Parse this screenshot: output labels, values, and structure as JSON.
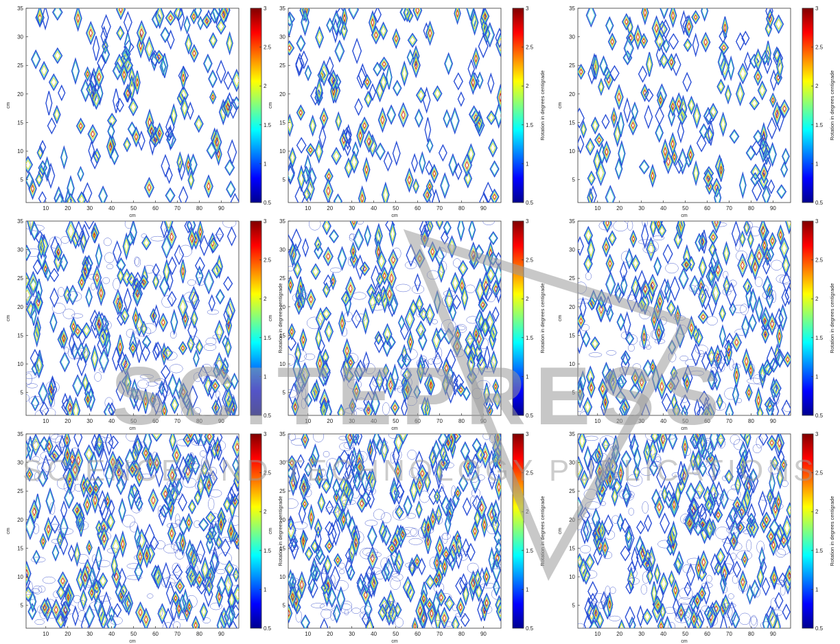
{
  "figure": {
    "colormap": [
      "#00008f",
      "#0000ff",
      "#0080ff",
      "#00ffff",
      "#80ff80",
      "#ffff00",
      "#ff8000",
      "#ff0000",
      "#800000"
    ],
    "contour_colors": [
      "#2a4fd6",
      "#3fa3e8",
      "#4fd2c8",
      "#8fdc76",
      "#e0dc3a",
      "#f39a2a",
      "#c92a1a"
    ]
  },
  "watermark": {
    "brand": "SCITEPRESS",
    "tagline": "SCIENCE AND TECHNOLOGY PUBLICATIONS",
    "color": "#9a9a9a"
  },
  "chart_data": [
    {
      "type": "heatmap",
      "xlabel": "cm",
      "ylabel": "cm",
      "xticks": [
        "10",
        "20",
        "30",
        "40",
        "50",
        "60",
        "70",
        "80",
        "90"
      ],
      "yticks": [
        "5",
        "10",
        "15",
        "20",
        "25",
        "30",
        "35"
      ],
      "xlim": [
        1,
        98
      ],
      "ylim": [
        1,
        35
      ],
      "colorbar": {
        "label": "",
        "ticks": [
          "0.5",
          "1",
          "1.5",
          "2",
          "2.5",
          "3"
        ],
        "range": [
          0.5,
          3
        ]
      },
      "density": 1
    },
    {
      "type": "heatmap",
      "xlabel": "cm",
      "ylabel": "cm",
      "xticks": [
        "10",
        "20",
        "30",
        "40",
        "50",
        "60",
        "70",
        "80",
        "90"
      ],
      "yticks": [
        "5",
        "10",
        "15",
        "20",
        "25",
        "30",
        "35"
      ],
      "xlim": [
        1,
        98
      ],
      "ylim": [
        1,
        35
      ],
      "colorbar": {
        "label": "Rotation in degrees centigrade",
        "ticks": [
          "0.5",
          "1",
          "1.5",
          "2",
          "2.5",
          "3"
        ],
        "range": [
          0.5,
          3
        ]
      },
      "density": 1
    },
    {
      "type": "heatmap",
      "xlabel": "cm",
      "ylabel": "cm",
      "xticks": [
        "10",
        "20",
        "30",
        "40",
        "50",
        "60",
        "70",
        "80",
        "90"
      ],
      "yticks": [
        "5",
        "10",
        "15",
        "20",
        "25",
        "30",
        "35"
      ],
      "xlim": [
        1,
        98
      ],
      "ylim": [
        1,
        35
      ],
      "colorbar": {
        "label": "Rotation in degrees centigrade",
        "ticks": [
          "0.5",
          "1",
          "1.5",
          "2",
          "2.5",
          "3"
        ],
        "range": [
          0.5,
          3
        ]
      },
      "density": 1
    },
    {
      "type": "heatmap",
      "xlabel": "cm",
      "ylabel": "cm",
      "xticks": [
        "10",
        "20",
        "30",
        "40",
        "50",
        "60",
        "70",
        "80",
        "90"
      ],
      "yticks": [
        "5",
        "10",
        "15",
        "20",
        "25",
        "30",
        "35"
      ],
      "xlim": [
        1,
        98
      ],
      "ylim": [
        1,
        35
      ],
      "colorbar": {
        "label": "Rotation in degrees centigrade",
        "ticks": [
          "0.5",
          "1",
          "1.5",
          "2",
          "2.5",
          "3"
        ],
        "range": [
          0.5,
          3
        ]
      },
      "density": 2
    },
    {
      "type": "heatmap",
      "xlabel": "cm",
      "ylabel": "cm",
      "xticks": [
        "10",
        "20",
        "30",
        "40",
        "50",
        "60",
        "70",
        "80",
        "90"
      ],
      "yticks": [
        "5",
        "10",
        "15",
        "20",
        "25",
        "30",
        "35"
      ],
      "xlim": [
        1,
        98
      ],
      "ylim": [
        1,
        35
      ],
      "colorbar": {
        "label": "Rotation in degrees centigrade",
        "ticks": [
          "0.5",
          "1",
          "1.5",
          "2",
          "2.5",
          "3"
        ],
        "range": [
          0.5,
          3
        ]
      },
      "density": 2
    },
    {
      "type": "heatmap",
      "xlabel": "cm",
      "ylabel": "cm",
      "xticks": [
        "10",
        "20",
        "30",
        "40",
        "50",
        "60",
        "70",
        "80",
        "90"
      ],
      "yticks": [
        "5",
        "10",
        "15",
        "20",
        "25",
        "30",
        "35"
      ],
      "xlim": [
        1,
        98
      ],
      "ylim": [
        1,
        35
      ],
      "colorbar": {
        "label": "Rotation in degrees centigrade",
        "ticks": [
          "0.5",
          "1",
          "1.5",
          "2",
          "2.5",
          "3"
        ],
        "range": [
          0.5,
          3
        ]
      },
      "density": 2
    },
    {
      "type": "heatmap",
      "xlabel": "cm",
      "ylabel": "cm",
      "xticks": [
        "10",
        "20",
        "30",
        "40",
        "50",
        "60",
        "70",
        "80",
        "90"
      ],
      "yticks": [
        "5",
        "10",
        "15",
        "20",
        "25",
        "30",
        "35"
      ],
      "xlim": [
        1,
        98
      ],
      "ylim": [
        1,
        35
      ],
      "colorbar": {
        "label": "Rotation in degrees centigrade",
        "ticks": [
          "0.5",
          "1",
          "1.5",
          "2",
          "2.5",
          "3"
        ],
        "range": [
          0.5,
          3
        ]
      },
      "density": 3
    },
    {
      "type": "heatmap",
      "xlabel": "cm",
      "ylabel": "cm",
      "xticks": [
        "10",
        "20",
        "30",
        "40",
        "50",
        "60",
        "70",
        "80",
        "90"
      ],
      "yticks": [
        "5",
        "10",
        "15",
        "20",
        "25",
        "30",
        "35"
      ],
      "xlim": [
        1,
        98
      ],
      "ylim": [
        1,
        35
      ],
      "colorbar": {
        "label": "Rotation in degrees centigrade",
        "ticks": [
          "0.5",
          "1",
          "1.5",
          "2",
          "2.5",
          "3"
        ],
        "range": [
          0.5,
          3
        ]
      },
      "density": 3
    },
    {
      "type": "heatmap",
      "xlabel": "cm",
      "ylabel": "cm",
      "xticks": [
        "10",
        "20",
        "30",
        "40",
        "50",
        "60",
        "70",
        "80",
        "90"
      ],
      "yticks": [
        "5",
        "10",
        "15",
        "20",
        "25",
        "30",
        "35"
      ],
      "xlim": [
        1,
        98
      ],
      "ylim": [
        1,
        35
      ],
      "colorbar": {
        "label": "Rotation in degrees centigrade",
        "ticks": [
          "0.5",
          "1",
          "1.5",
          "2",
          "2.5",
          "3"
        ],
        "range": [
          0.5,
          3
        ]
      },
      "density": 3
    }
  ]
}
